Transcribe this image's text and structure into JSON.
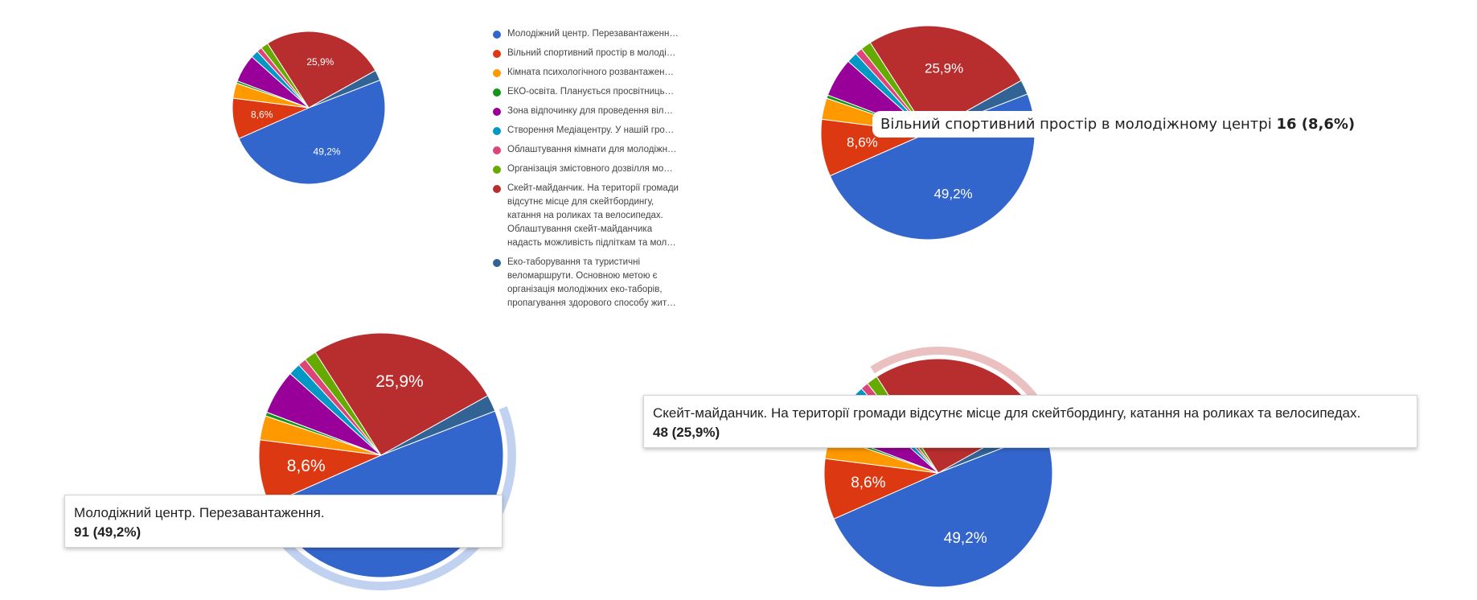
{
  "chart_data": [
    {
      "type": "pie",
      "legend": "right",
      "slices": [
        {
          "label": "Молодіжний центр. Перезавантаженн…",
          "value": 49.2,
          "color": "#3366cc"
        },
        {
          "label": "Вільний спортивний простір в молоді…",
          "value": 8.6,
          "color": "#dc3912"
        },
        {
          "label": "Кімната психологічного розвантажен…",
          "value": 3.2,
          "color": "#ff9900"
        },
        {
          "label": "ЕКО-освіта. Планується просвітниць…",
          "value": 0.5,
          "color": "#109618"
        },
        {
          "label": "Зона відпочинку для проведення віл…",
          "value": 5.9,
          "color": "#990099"
        },
        {
          "label": "Створення Медіацентру. У нашій гро…",
          "value": 1.6,
          "color": "#0099c6"
        },
        {
          "label": "Облаштування кімнати для молодіжн…",
          "value": 1.1,
          "color": "#dd4477"
        },
        {
          "label": "Організація змістовного дозвілля мо…",
          "value": 1.6,
          "color": "#66aa00"
        },
        {
          "label": "Скейт-майданчик. На території громади\nвідсутнє місце для скейтбордингу,\nкатання на роликах та велосипедах.\nОблаштування скейт-майданчика\nнадасть можливість підліткам та мол…",
          "value": 25.9,
          "color": "#b82e2e"
        },
        {
          "label": "Еко-таборування та туристичні\nвеломаршрути. Основною метою є\nорганізація молодіжних еко-таборів,\nпропагування здорового способу жит…",
          "value": 2.2,
          "color": "#316395"
        }
      ],
      "data_labels": [
        "49,2%",
        "8,6%",
        "25,9%"
      ]
    }
  ],
  "tooltips": {
    "sport": {
      "name": "Вільний спортивний простір в молодіжному центрі ",
      "value": "16 (8,6%)"
    },
    "youth": {
      "name": "Молодіжний центр. Перезавантаження.",
      "value": "91 (49,2%)"
    },
    "skate": {
      "name": "Скейт-майданчик. На території громади відсутнє місце для скейтбордингу, катання на роликах та велосипедах.",
      "value": "48 (25,9%)"
    }
  }
}
